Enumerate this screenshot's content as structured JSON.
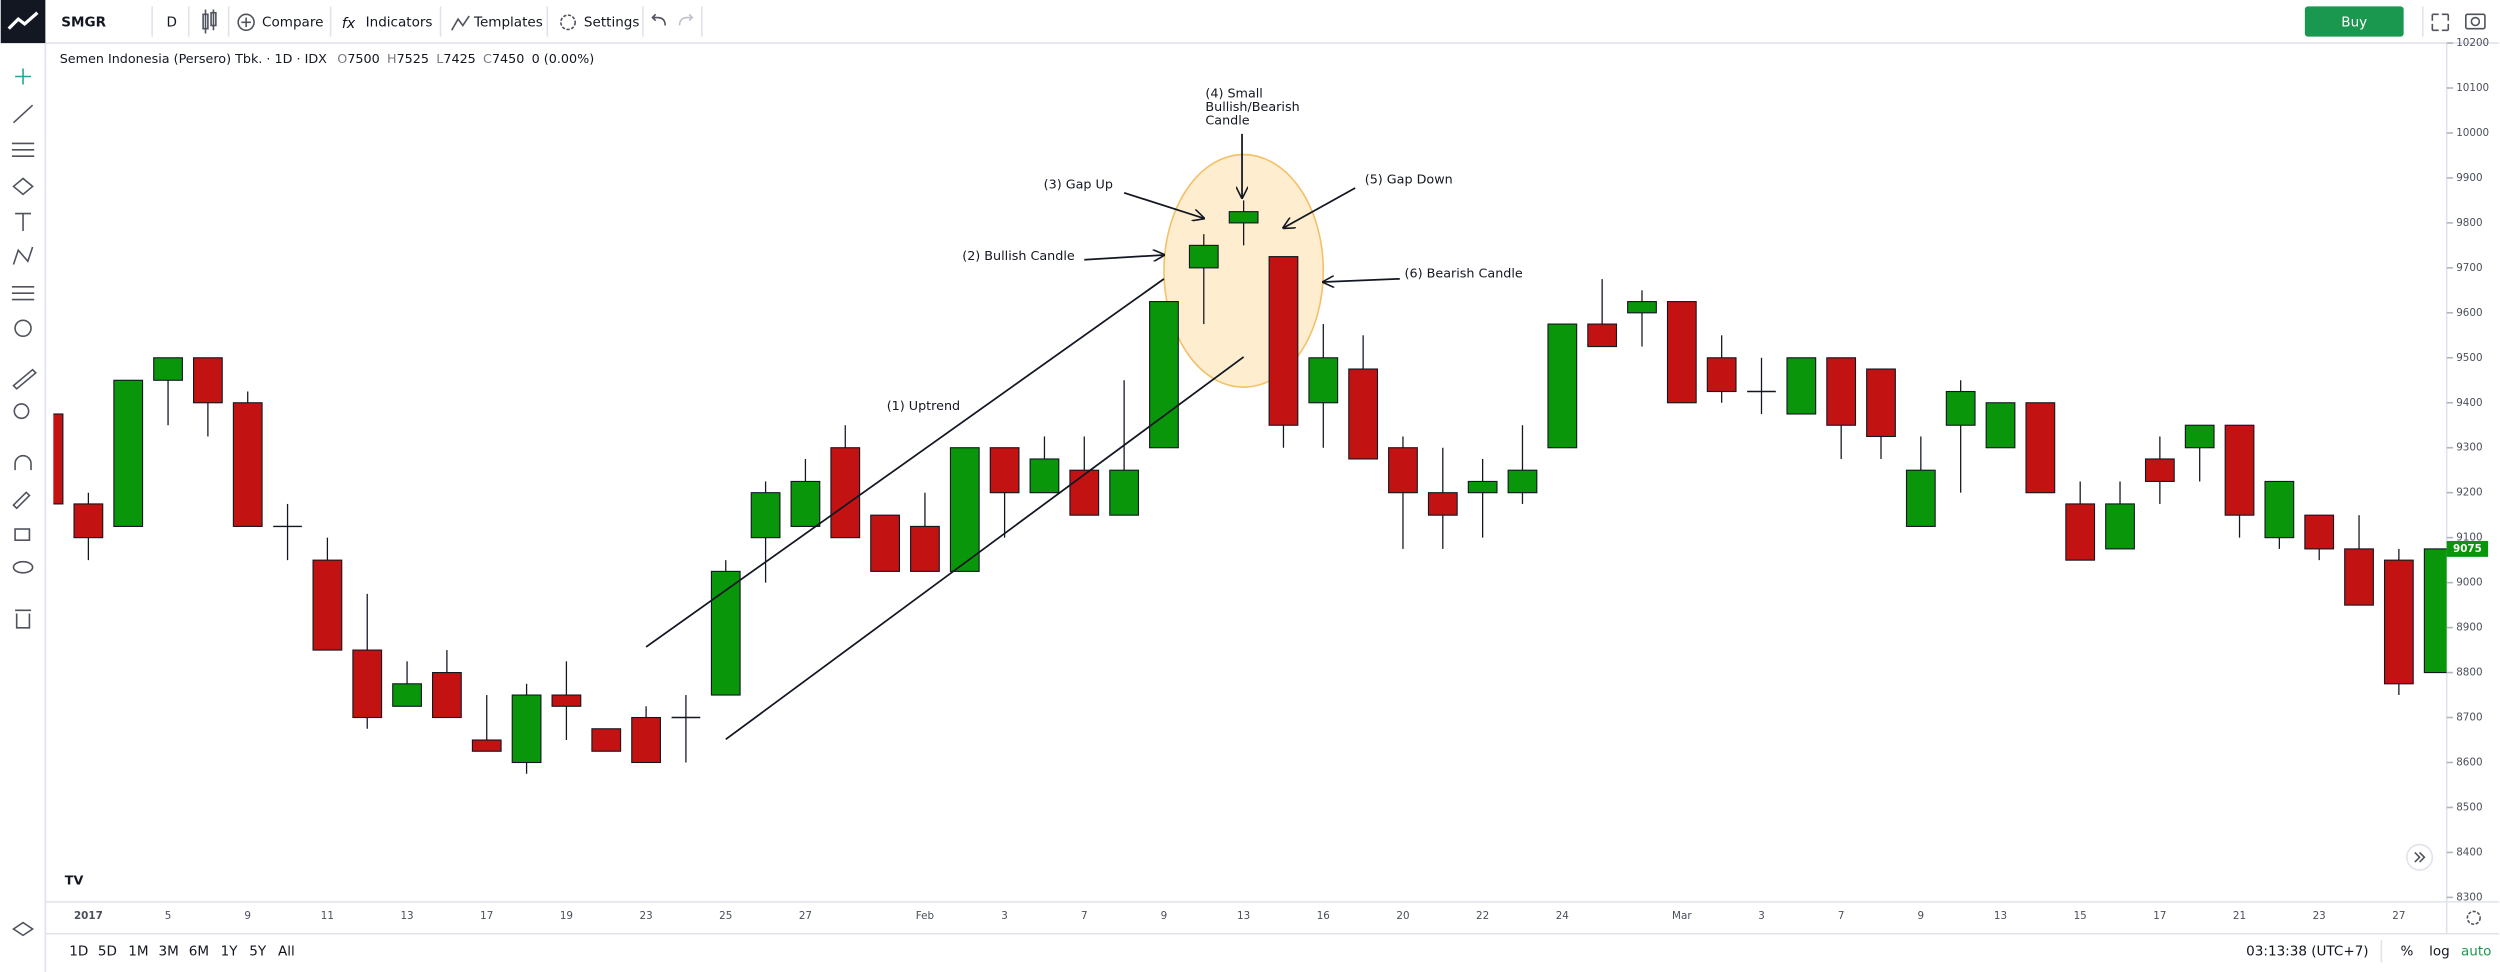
{
  "toolbar": {
    "symbol": "SMGR",
    "interval": "D",
    "compare": "Compare",
    "indicators": "Indicators",
    "templates": "Templates",
    "settings": "Settings",
    "buy": "Buy"
  },
  "header": {
    "name": "Semen Indonesia (Persero) Tbk. · 1D · IDX",
    "ohlc": [
      {
        "label": "O",
        "value": 7500
      },
      {
        "label": "H",
        "value": 7525
      },
      {
        "label": "L",
        "value": 7425
      },
      {
        "label": "C",
        "value": 7450
      }
    ],
    "change": "0 (0.00%)"
  },
  "bottom_bar": {
    "ranges": [
      "1D",
      "5D",
      "1M",
      "3M",
      "6M",
      "1Y",
      "5Y",
      "All"
    ],
    "time": "03:13:38 (UTC+7)",
    "percent": "%",
    "log": "log",
    "auto": "auto"
  },
  "chart_data": {
    "type": "candlestick",
    "categories": [
      null,
      "2017",
      null,
      "5",
      null,
      "9",
      null,
      "11",
      null,
      "13",
      null,
      "17",
      null,
      "19",
      null,
      "23",
      null,
      "25",
      null,
      "27",
      null,
      null,
      "Feb",
      null,
      "3",
      null,
      "7",
      null,
      "9",
      null,
      "13",
      null,
      "16",
      null,
      "20",
      null,
      "22",
      null,
      "24",
      null,
      null,
      "Mar",
      null,
      "3",
      null,
      "7",
      null,
      "9",
      null,
      "13",
      null,
      "15",
      null,
      "17",
      null,
      "21",
      null,
      "23",
      null,
      "27",
      null
    ],
    "open": [
      9375,
      9175,
      9125,
      9450,
      9500,
      9400,
      9125,
      9050,
      8850,
      8725,
      8800,
      8650,
      8600,
      8750,
      8675,
      8700,
      8700,
      8750,
      9100,
      9125,
      9300,
      9150,
      9125,
      9025,
      9300,
      9200,
      9250,
      9150,
      9300,
      9700,
      9800,
      9725,
      9400,
      9475,
      9300,
      9200,
      9200,
      9200,
      9300,
      9575,
      9600,
      9625,
      9500,
      9425,
      9375,
      9500,
      9475,
      9125,
      9350,
      9300,
      9400,
      9175,
      9075,
      9275,
      9300,
      9350,
      9100,
      9150,
      9075,
      9050,
      8800
    ],
    "high": [
      9375,
      9200,
      9450,
      9500,
      9500,
      9425,
      9175,
      9100,
      8975,
      8825,
      8850,
      8750,
      8775,
      8825,
      8675,
      8725,
      8750,
      9050,
      9225,
      9275,
      9350,
      9150,
      9200,
      9300,
      9300,
      9325,
      9325,
      9450,
      9625,
      9775,
      9850,
      9725,
      9575,
      9550,
      9325,
      9300,
      9275,
      9350,
      9575,
      9675,
      9650,
      9625,
      9550,
      9500,
      9500,
      9500,
      9475,
      9325,
      9450,
      9400,
      9400,
      9225,
      9225,
      9325,
      9350,
      9350,
      9225,
      9150,
      9150,
      9075,
      9075
    ],
    "low": [
      9175,
      9050,
      9125,
      9350,
      9325,
      9125,
      9050,
      8850,
      8675,
      8725,
      8700,
      8625,
      8575,
      8650,
      8625,
      8600,
      8600,
      8750,
      9000,
      9125,
      9100,
      9025,
      9025,
      9025,
      9100,
      9200,
      9150,
      9150,
      9300,
      9575,
      9750,
      9300,
      9300,
      9275,
      9075,
      9075,
      9100,
      9175,
      9300,
      9525,
      9525,
      9400,
      9400,
      9375,
      9375,
      9275,
      9275,
      9125,
      9200,
      9300,
      9200,
      9050,
      9075,
      9175,
      9225,
      9100,
      9075,
      9050,
      8950,
      8750,
      8800
    ],
    "close": [
      9175,
      9100,
      9450,
      9500,
      9400,
      9125,
      9125,
      8850,
      8700,
      8775,
      8700,
      8625,
      8750,
      8725,
      8625,
      8600,
      8700,
      9025,
      9200,
      9225,
      9100,
      9025,
      9025,
      9300,
      9200,
      9275,
      9150,
      9250,
      9625,
      9750,
      9825,
      9350,
      9500,
      9275,
      9200,
      9150,
      9225,
      9250,
      9575,
      9525,
      9625,
      9400,
      9425,
      9425,
      9500,
      9350,
      9325,
      9250,
      9425,
      9400,
      9200,
      9050,
      9175,
      9225,
      9350,
      9150,
      9225,
      9075,
      8950,
      8775,
      9075
    ],
    "up_color": "#0a960a",
    "down_color": "#c21212",
    "ylim": [
      8290,
      10200
    ],
    "yticks": [
      8300,
      8400,
      8500,
      8600,
      8700,
      8800,
      8900,
      9000,
      9100,
      9200,
      9300,
      9400,
      9500,
      9600,
      9700,
      9800,
      9900,
      10000,
      10100,
      10200
    ],
    "last_price": 9075,
    "annotations": [
      {
        "lines": [
          "(1) Uptrend"
        ]
      },
      {
        "lines": [
          "(2) Bullish Candle"
        ]
      },
      {
        "lines": [
          "(3) Gap Up"
        ]
      },
      {
        "lines": [
          "(4) Small",
          "Bullish/Bearish",
          "Candle"
        ]
      },
      {
        "lines": [
          "(5) Gap Down"
        ]
      },
      {
        "lines": [
          "(6) Bearish Candle"
        ]
      }
    ]
  }
}
